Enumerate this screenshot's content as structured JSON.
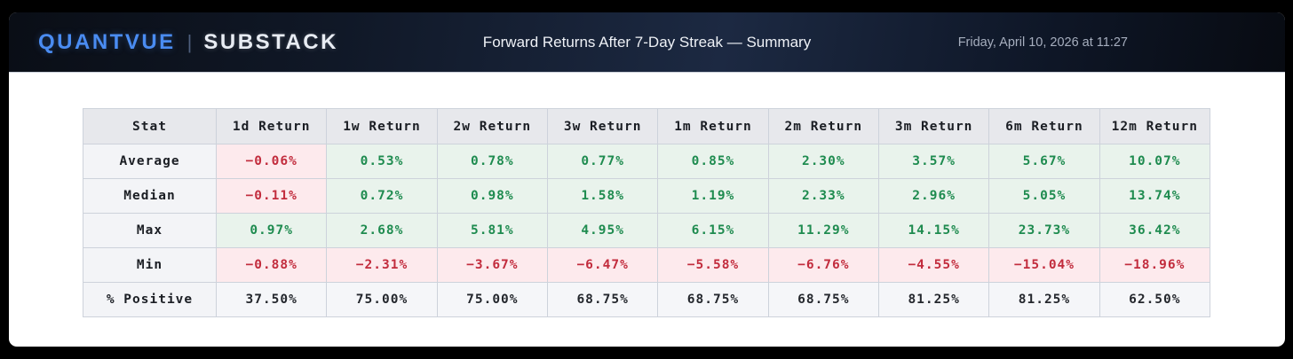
{
  "header": {
    "brand_primary": "QUANTVUE",
    "brand_separator": "|",
    "brand_secondary": "SUBSTACK",
    "title": "Forward Returns After 7-Day Streak — Summary",
    "datetime": "Friday, April 10, 2026 at 11:27"
  },
  "colors": {
    "brand_blue": "#4a8cf2",
    "positive_text": "#1e8b4f",
    "positive_bg": "#e9f3ec",
    "negative_text": "#c22c3d",
    "negative_bg": "#fdeaed",
    "neutral_bg": "#f5f6f9",
    "header_bg_mid": "#1c2942"
  },
  "table": {
    "columns": [
      "Stat",
      "1d Return",
      "1w Return",
      "2w Return",
      "3w Return",
      "1m Return",
      "2m Return",
      "3m Return",
      "6m Return",
      "12m Return"
    ],
    "rows": [
      {
        "stat": "Average",
        "values": [
          "−0.06%",
          "0.53%",
          "0.78%",
          "0.77%",
          "0.85%",
          "2.30%",
          "3.57%",
          "5.67%",
          "10.07%"
        ],
        "tones": [
          "neg",
          "pos",
          "pos",
          "pos",
          "pos",
          "pos",
          "pos",
          "pos",
          "pos"
        ]
      },
      {
        "stat": "Median",
        "values": [
          "−0.11%",
          "0.72%",
          "0.98%",
          "1.58%",
          "1.19%",
          "2.33%",
          "2.96%",
          "5.05%",
          "13.74%"
        ],
        "tones": [
          "neg",
          "pos",
          "pos",
          "pos",
          "pos",
          "pos",
          "pos",
          "pos",
          "pos"
        ]
      },
      {
        "stat": "Max",
        "values": [
          "0.97%",
          "2.68%",
          "5.81%",
          "4.95%",
          "6.15%",
          "11.29%",
          "14.15%",
          "23.73%",
          "36.42%"
        ],
        "tones": [
          "pos",
          "pos",
          "pos",
          "pos",
          "pos",
          "pos",
          "pos",
          "pos",
          "pos"
        ]
      },
      {
        "stat": "Min",
        "values": [
          "−0.88%",
          "−2.31%",
          "−3.67%",
          "−6.47%",
          "−5.58%",
          "−6.76%",
          "−4.55%",
          "−15.04%",
          "−18.96%"
        ],
        "tones": [
          "neg",
          "neg",
          "neg",
          "neg",
          "neg",
          "neg",
          "neg",
          "neg",
          "neg"
        ]
      },
      {
        "stat": "% Positive",
        "values": [
          "37.50%",
          "75.00%",
          "75.00%",
          "68.75%",
          "68.75%",
          "68.75%",
          "81.25%",
          "81.25%",
          "62.50%"
        ],
        "tones": [
          "neu",
          "neu",
          "neu",
          "neu",
          "neu",
          "neu",
          "neu",
          "neu",
          "neu"
        ]
      }
    ]
  },
  "chart_data": {
    "type": "table",
    "title": "Forward Returns After 7-Day Streak — Summary",
    "columns": [
      "1d Return",
      "1w Return",
      "2w Return",
      "3w Return",
      "1m Return",
      "2m Return",
      "3m Return",
      "6m Return",
      "12m Return"
    ],
    "rows": [
      {
        "stat": "Average",
        "values_pct": [
          -0.06,
          0.53,
          0.78,
          0.77,
          0.85,
          2.3,
          3.57,
          5.67,
          10.07
        ]
      },
      {
        "stat": "Median",
        "values_pct": [
          -0.11,
          0.72,
          0.98,
          1.58,
          1.19,
          2.33,
          2.96,
          5.05,
          13.74
        ]
      },
      {
        "stat": "Max",
        "values_pct": [
          0.97,
          2.68,
          5.81,
          4.95,
          6.15,
          11.29,
          14.15,
          23.73,
          36.42
        ]
      },
      {
        "stat": "Min",
        "values_pct": [
          -0.88,
          -2.31,
          -3.67,
          -6.47,
          -5.58,
          -6.76,
          -4.55,
          -15.04,
          -18.96
        ]
      },
      {
        "stat": "% Positive",
        "values_pct": [
          37.5,
          75.0,
          75.0,
          68.75,
          68.75,
          68.75,
          81.25,
          81.25,
          62.5
        ]
      }
    ]
  }
}
